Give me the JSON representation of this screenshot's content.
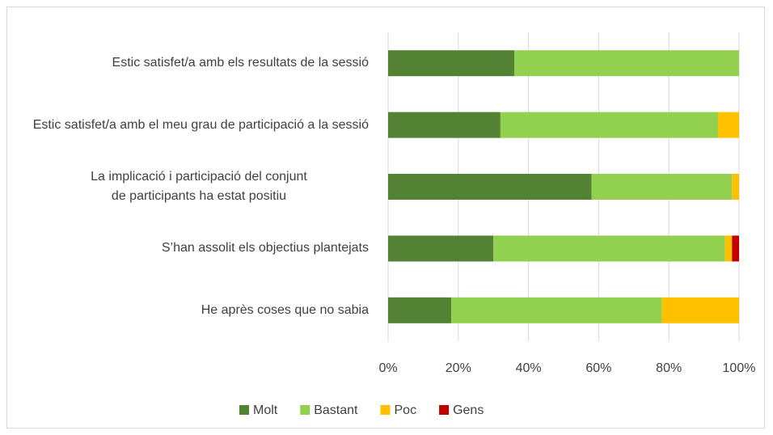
{
  "chart_data": {
    "type": "stacked_bar_horizontal",
    "categories": [
      "Estic satisfet/a amb els resultats de la sessió",
      "Estic satisfet/a amb el meu grau de participació a la sessió",
      "La implicació i participació del conjunt de participants ha estat positiu",
      "S’han assolit els objectius plantejats",
      "He après coses que no sabia"
    ],
    "series": [
      {
        "name": "Molt",
        "color": "#548235",
        "values": [
          36,
          32,
          58,
          30,
          18
        ]
      },
      {
        "name": "Bastant",
        "color": "#92d050",
        "values": [
          64,
          62,
          40,
          66,
          60
        ]
      },
      {
        "name": "Poc",
        "color": "#ffc000",
        "values": [
          0,
          6,
          2,
          2,
          22
        ]
      },
      {
        "name": "Gens",
        "color": "#c00000",
        "values": [
          0,
          0,
          0,
          2,
          0
        ]
      }
    ],
    "xlim": [
      0,
      100
    ],
    "xticks": [
      {
        "value": 0,
        "label": "0%"
      },
      {
        "value": 20,
        "label": "20%"
      },
      {
        "value": 40,
        "label": "40%"
      },
      {
        "value": 60,
        "label": "60%"
      },
      {
        "value": 80,
        "label": "80%"
      },
      {
        "value": 100,
        "label": "100%"
      }
    ],
    "grid": true,
    "legend": "bottom"
  }
}
